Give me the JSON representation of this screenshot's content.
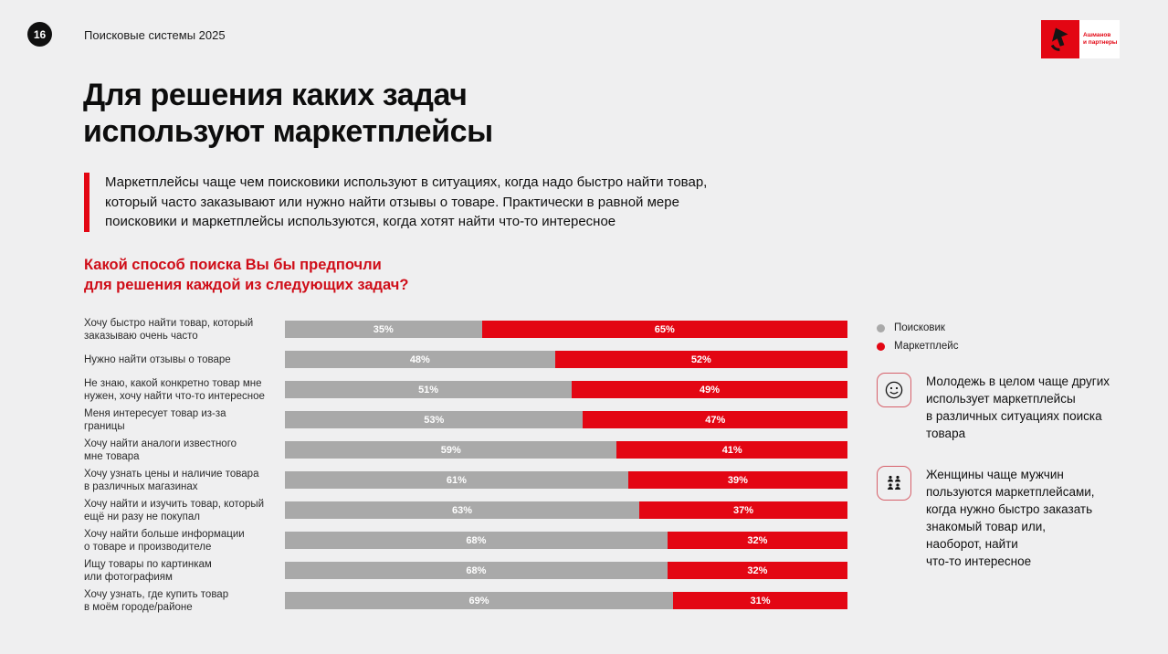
{
  "page": {
    "number": "16",
    "header_label": "Поисковые системы 2025"
  },
  "logo": {
    "brand_line1": "Ашманов",
    "brand_line2": "и партнеры"
  },
  "title": "Для решения каких задач\nиспользуют маркетплейсы",
  "quote": "Маркетплейсы чаще чем поисковики используют в ситуациях, когда надо быстро найти товар,\nкоторый часто заказывают или нужно найти отзывы о товаре. Практически в равной мере\nпоисковики и маркетплейсы используются, когда хотят найти что-то интересное",
  "question": "Какой способ поиска Вы бы предпочли\nдля решения каждой из следующих задач?",
  "chart_data": {
    "type": "bar",
    "orientation": "horizontal",
    "stacked": true,
    "title": "Какой способ поиска Вы бы предпочли для решения каждой из следующих задач?",
    "categories": [
      "Хочу быстро найти товар, который\nзаказываю очень часто",
      "Нужно найти отзывы о товаре",
      "Не знаю, какой конкретно товар мне\nнужен, хочу найти что-то интересное",
      "Меня интересует товар из-за границы",
      "Хочу найти аналоги известного\nмне товара",
      "Хочу узнать цены и наличие товара\nв различных магазинах",
      "Хочу найти и изучить товар, который\nещё ни разу не покупал",
      "Хочу найти больше информации\nо товаре и производителе",
      "Ищу товары по картинкам\nили фотографиям",
      "Хочу узнать, где купить товар\nв моём городе/районе"
    ],
    "series": [
      {
        "name": "Поисковик",
        "color": "#a9a9a9",
        "values": [
          35,
          48,
          51,
          53,
          59,
          61,
          63,
          68,
          68,
          69
        ]
      },
      {
        "name": "Маркетплейс",
        "color": "#e30613",
        "values": [
          65,
          52,
          49,
          47,
          41,
          39,
          37,
          32,
          32,
          31
        ]
      }
    ],
    "value_suffix": "%",
    "xlim": [
      0,
      100
    ],
    "grid": false,
    "legend_position": "right"
  },
  "insights": [
    {
      "icon": "smiley-icon",
      "text": "Молодежь в целом чаще других\nиспользует маркетплейсы\nв различных ситуациях поиска\nтовара"
    },
    {
      "icon": "people-group-icon",
      "text": "Женщины чаще мужчин\nпользуются маркетплейсами,\nкогда нужно быстро заказать\nзнакомый товар или,\nнаоборот, найти\nчто-то интересное"
    }
  ],
  "colors": {
    "background": "#efeff0",
    "brand_red": "#e30613",
    "question_red": "#cf0d18",
    "bar_gray": "#a9a9a9",
    "text_black": "#101010"
  }
}
